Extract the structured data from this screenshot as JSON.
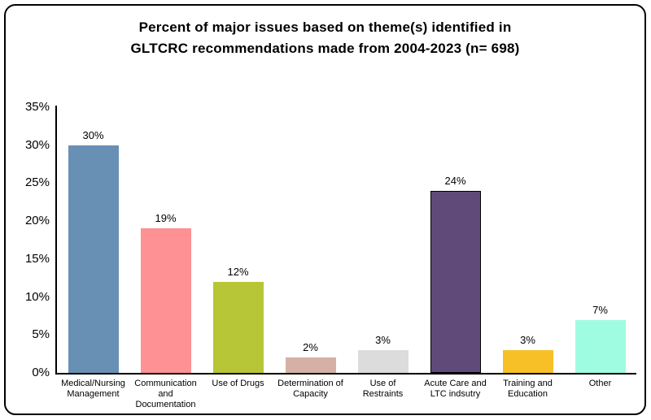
{
  "page": {
    "background": "#ffffff",
    "frame_border_color": "#000000",
    "axis_color": "#000000",
    "text_color": "#000000"
  },
  "chart_data": {
    "type": "bar",
    "title": "Percent of major issues based on theme(s) identified in GLTCRC recommendations made from 2004-2023 (n= 698)",
    "title_lines": [
      "Percent of major issues based on theme(s) identified in",
      "GLTCRC recommendations made from 2004-2023 (n= 698)"
    ],
    "categories": [
      "Medical/Nursing Management",
      "Communication and Documentation",
      "Use of Drugs",
      "Determination of Capacity",
      "Use of Restraints",
      "Acute Care and LTC indsutry",
      "Training and Education",
      "Other"
    ],
    "category_lines": [
      [
        "Medical/Nursing",
        "Management"
      ],
      [
        "Communication",
        "and",
        "Documentation"
      ],
      [
        "Use of Drugs"
      ],
      [
        "Determination of",
        "Capacity"
      ],
      [
        "Use of",
        "Restraints"
      ],
      [
        "Acute Care and",
        "LTC indsutry"
      ],
      [
        "Training and",
        "Education"
      ],
      [
        "Other"
      ]
    ],
    "values": [
      30,
      19,
      12,
      2,
      3,
      24,
      3,
      7
    ],
    "value_labels": [
      "30%",
      "19%",
      "12%",
      "2%",
      "3%",
      "24%",
      "3%",
      "7%"
    ],
    "bar_colors": [
      "#6890b5",
      "#fd9193",
      "#b7c637",
      "#d4b0a6",
      "#dcdcdc",
      "#5f4a7a",
      "#f6c026",
      "#a0fce0"
    ],
    "bar_border_colors": [
      "none",
      "none",
      "none",
      "none",
      "none",
      "#000000",
      "none",
      "none"
    ],
    "sample_size": "n= 698",
    "xlabel": "",
    "ylabel": "",
    "ylim": [
      0,
      35
    ],
    "y_tick_values": [
      0,
      5,
      10,
      15,
      20,
      25,
      30,
      35
    ],
    "y_tick_labels": [
      "0%",
      "5%",
      "10%",
      "15%",
      "20%",
      "25%",
      "30%",
      "35%"
    ],
    "grid": false,
    "legend_position": "none"
  }
}
